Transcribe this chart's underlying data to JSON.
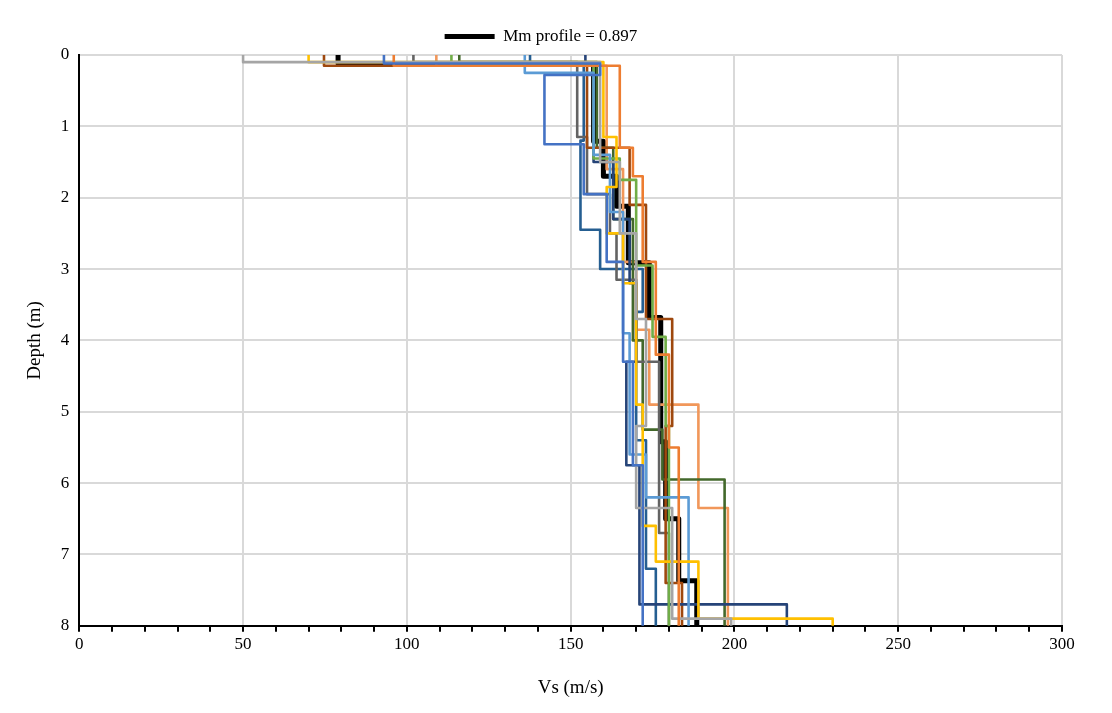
{
  "chart_data": {
    "type": "line",
    "xlabel": "Vs (m/s)",
    "ylabel": "Depth (m)",
    "xlim": [
      0,
      300
    ],
    "ylim": [
      8,
      0
    ],
    "xticks": [
      0,
      {
        "value": 10,
        "label": null
      },
      {
        "value": 20,
        "label": null
      },
      {
        "value": 30,
        "label": null
      },
      {
        "value": 40,
        "label": null
      },
      50,
      {
        "value": 60,
        "label": null
      },
      {
        "value": 70,
        "label": null
      },
      {
        "value": 80,
        "label": null
      },
      {
        "value": 90,
        "label": null
      },
      100,
      {
        "value": 110,
        "label": null
      },
      {
        "value": 120,
        "label": null
      },
      {
        "value": 130,
        "label": null
      },
      {
        "value": 140,
        "label": null
      },
      150,
      {
        "value": 160,
        "label": null
      },
      {
        "value": 170,
        "label": null
      },
      {
        "value": 180,
        "label": null
      },
      {
        "value": 190,
        "label": null
      },
      200,
      {
        "value": 210,
        "label": null
      },
      {
        "value": 220,
        "label": null
      },
      {
        "value": 230,
        "label": null
      },
      {
        "value": 240,
        "label": null
      },
      250,
      {
        "value": 260,
        "label": null
      },
      {
        "value": 270,
        "label": null
      },
      {
        "value": 280,
        "label": null
      },
      {
        "value": 290,
        "label": null
      },
      300
    ],
    "yticks": [
      0,
      1,
      2,
      3,
      4,
      5,
      6,
      7,
      8
    ],
    "grid": true,
    "legend": "top",
    "marker": "none",
    "line_style": "solid",
    "series": [
      {
        "color": "#4472c4",
        "x": [
          93,
          93,
          159,
          159,
          142,
          142,
          154,
          154,
          161,
          161,
          166,
          166,
          169,
          169,
          172,
          172
        ],
        "values": [
          0,
          0.12,
          0.12,
          0.28,
          0.28,
          1.25,
          1.25,
          1.95,
          1.95,
          2.9,
          2.9,
          4.3,
          4.3,
          5.75,
          5.75,
          8
        ]
      },
      {
        "color": "#ed7d31",
        "x": [
          96,
          96,
          165,
          165,
          169,
          169,
          172,
          172,
          176,
          176,
          180,
          180,
          183,
          183
        ],
        "values": [
          0,
          0.15,
          0.15,
          1.3,
          1.3,
          1.7,
          1.7,
          2.9,
          2.9,
          4.2,
          4.2,
          5.5,
          5.5,
          8
        ]
      },
      {
        "color": "#a5a5a5",
        "x": [
          50,
          50,
          159,
          159,
          165,
          165,
          170,
          170,
          173,
          173,
          170,
          170,
          181,
          181,
          199,
          199
        ],
        "values": [
          0,
          0.1,
          0.1,
          1.5,
          1.5,
          2.5,
          2.5,
          3.7,
          3.7,
          5.2,
          5.2,
          6.35,
          6.35,
          7.9,
          7.9,
          8
        ]
      },
      {
        "color": "#ffc000",
        "x": [
          70,
          70,
          160,
          160,
          164,
          164,
          161,
          161,
          166,
          166,
          170,
          170,
          172,
          172,
          176,
          176,
          189,
          189,
          230,
          230
        ],
        "values": [
          0,
          0.1,
          0.1,
          1.15,
          1.15,
          1.85,
          1.85,
          2.5,
          2.5,
          3.2,
          3.2,
          4.9,
          4.9,
          6.6,
          6.6,
          7.1,
          7.1,
          7.9,
          7.9,
          8
        ]
      },
      {
        "color": "#5b9bd5",
        "x": [
          136,
          136,
          157,
          157,
          162,
          162,
          166,
          166,
          168,
          168,
          173,
          173,
          186,
          186
        ],
        "values": [
          0,
          0.25,
          0.25,
          1.4,
          1.4,
          2.2,
          2.2,
          3.9,
          3.9,
          5.6,
          5.6,
          6.2,
          6.2,
          8
        ]
      },
      {
        "color": "#70ad47",
        "x": [
          113.6,
          113.6,
          157,
          157,
          165,
          165,
          170,
          170,
          175,
          175,
          179,
          179,
          180,
          180
        ],
        "values": [
          0,
          0.15,
          0.15,
          1.45,
          1.45,
          1.75,
          1.75,
          2.95,
          2.95,
          3.95,
          3.95,
          5.2,
          5.2,
          8
        ]
      },
      {
        "color": "#264478",
        "x": [
          154.5,
          154.5,
          157,
          157,
          163,
          163,
          168,
          168,
          170,
          170,
          167,
          167,
          171,
          171,
          216,
          216
        ],
        "values": [
          0,
          0.15,
          0.15,
          1.5,
          1.5,
          2.3,
          2.3,
          3.2,
          3.2,
          4.3,
          4.3,
          5.75,
          5.75,
          7.7,
          7.7,
          8
        ]
      },
      {
        "color": "#9e480e",
        "x": [
          74.7,
          74.7,
          155,
          155,
          168,
          168,
          173,
          173,
          181,
          181,
          179,
          179,
          184,
          184
        ],
        "values": [
          0,
          0.15,
          0.15,
          1.3,
          1.3,
          2.1,
          2.1,
          3.7,
          3.7,
          5.2,
          5.2,
          7.4,
          7.4,
          8
        ]
      },
      {
        "color": "#636363",
        "x": [
          102,
          102,
          152,
          152,
          155,
          155,
          162,
          162,
          164,
          164,
          170,
          170,
          177,
          177,
          180,
          180
        ],
        "values": [
          0,
          0.1,
          0.1,
          1.15,
          1.15,
          1.95,
          1.95,
          2.5,
          2.5,
          3.15,
          3.15,
          4.3,
          4.3,
          6.7,
          6.7,
          8
        ]
      },
      {
        "color": "#43682b",
        "x": [
          116,
          116,
          158,
          158,
          163,
          163,
          169,
          169,
          172,
          172,
          178,
          178,
          197,
          197
        ],
        "values": [
          0,
          0.1,
          0.1,
          1.3,
          1.3,
          2.3,
          2.3,
          4.0,
          4.0,
          5.25,
          5.25,
          5.95,
          5.95,
          8
        ]
      },
      {
        "color": "#f1975a",
        "x": [
          109,
          109,
          161,
          161,
          166,
          166,
          170,
          170,
          174,
          174,
          189,
          189,
          198,
          198
        ],
        "values": [
          0,
          0.15,
          0.15,
          1.6,
          1.6,
          2.9,
          2.9,
          3.85,
          3.85,
          4.9,
          4.9,
          6.35,
          6.35,
          8
        ]
      },
      {
        "color": "#255e91",
        "x": [
          137.6,
          137.6,
          154,
          154,
          153,
          153,
          159,
          159,
          172,
          172,
          170,
          170,
          173,
          173,
          176,
          176
        ],
        "values": [
          0,
          0.12,
          0.12,
          1.2,
          1.2,
          2.45,
          2.45,
          3.0,
          3.0,
          3.6,
          3.6,
          5.4,
          5.4,
          7.2,
          7.2,
          8
        ]
      },
      {
        "name": "Mm profile = 0.897",
        "color": "#000000",
        "x": [
          79,
          79,
          157,
          157,
          160,
          160,
          164,
          164,
          167.6,
          167.6,
          174,
          174,
          177.5,
          177.5,
          179,
          179,
          183,
          183,
          188.5,
          188.5
        ],
        "values": [
          0,
          0.12,
          0.12,
          1.21,
          1.21,
          1.7,
          1.7,
          2.12,
          2.12,
          2.91,
          2.91,
          3.68,
          3.68,
          5.42,
          5.42,
          6.5,
          6.5,
          7.37,
          7.37,
          8
        ]
      }
    ]
  }
}
